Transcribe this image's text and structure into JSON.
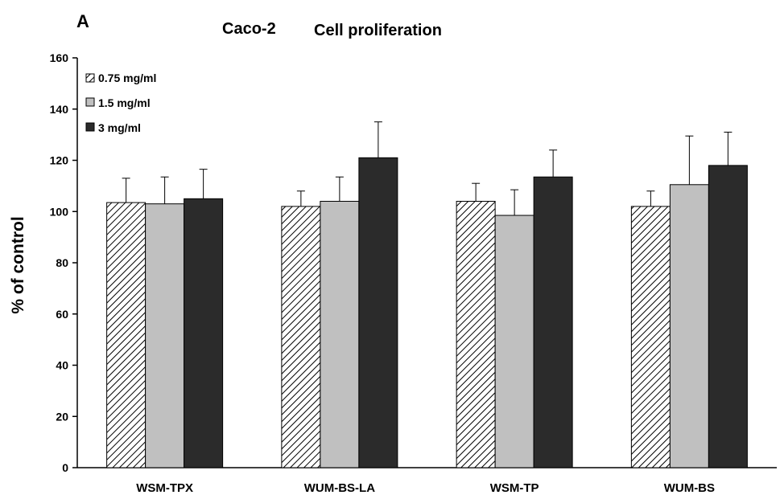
{
  "panel_label": "A",
  "title_cell": "Caco-2",
  "title_main": "Cell proliferation",
  "colors": {
    "hatch_bg": "#ffffff",
    "hatch_line": "#000000",
    "light": "#c0c0c0",
    "dark": "#2b2b2b",
    "axis": "#000000"
  },
  "chart_data": {
    "type": "bar",
    "ylabel": "% of control",
    "xlabel": "",
    "ylim": [
      0,
      160
    ],
    "yticks": [
      0,
      20,
      40,
      60,
      80,
      100,
      120,
      140,
      160
    ],
    "grid": false,
    "legend_position": "top-left",
    "categories": [
      "WSM-TPX",
      "WUM-BS-LA",
      "WSM-TP",
      "WUM-BS"
    ],
    "series": [
      {
        "name": "0.75 mg/ml",
        "style": "hatched",
        "values": [
          103.5,
          102,
          104,
          102
        ],
        "errors": [
          9.5,
          6,
          7,
          6
        ]
      },
      {
        "name": "1.5 mg/ml",
        "style": "light",
        "values": [
          103,
          104,
          98.5,
          110.5
        ],
        "errors": [
          10.5,
          9.5,
          10,
          19
        ]
      },
      {
        "name": "3 mg/ml",
        "style": "dark",
        "values": [
          105,
          121,
          113.5,
          118
        ],
        "errors": [
          11.5,
          14,
          10.5,
          13
        ]
      }
    ]
  }
}
